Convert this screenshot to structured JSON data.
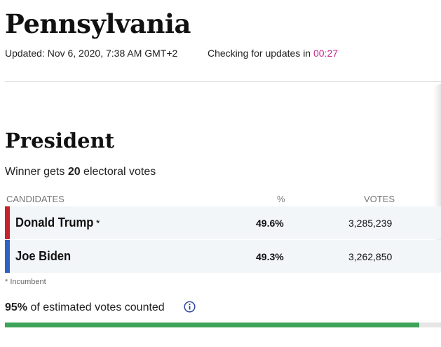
{
  "header": {
    "state": "Pennsylvania",
    "updated": "Updated: Nov 6, 2020, 7:38 AM GMT+2",
    "checking_prefix": "Checking for updates in ",
    "countdown": "00:27"
  },
  "race": {
    "title": "President",
    "electoral_prefix": "Winner gets ",
    "electoral_votes": "20",
    "electoral_suffix": " electoral votes"
  },
  "table": {
    "headers": {
      "candidates": "CANDIDATES",
      "pct": "%",
      "votes": "VOTES"
    },
    "rows": [
      {
        "name": "Donald Trump",
        "incumbent": "*",
        "pct": "49.6%",
        "votes": "3,285,239",
        "party_color": "#c8222c"
      },
      {
        "name": "Joe Biden",
        "incumbent": "",
        "pct": "49.3%",
        "votes": "3,262,850",
        "party_color": "#2f62c4"
      }
    ]
  },
  "footnote": "* Incumbent",
  "counted": {
    "pct": "95%",
    "suffix": " of estimated votes counted",
    "icon": "info-icon",
    "progress_fraction": 0.95,
    "progress_color": "#3da35a"
  },
  "colors": {
    "countdown": "#c8278f",
    "info_icon": "#2c4a9c"
  }
}
